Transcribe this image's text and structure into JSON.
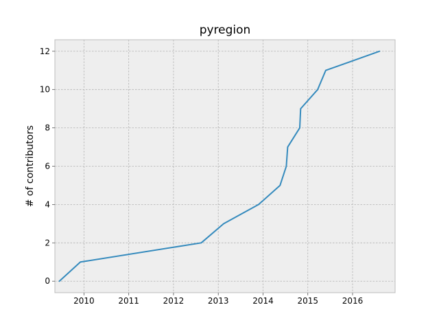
{
  "chart_data": {
    "type": "line",
    "title": "pyregion",
    "xlabel": "",
    "ylabel": "# of contributors",
    "xlim": [
      2009.35,
      2016.95
    ],
    "ylim": [
      -0.6,
      12.6
    ],
    "xticks": [
      2010,
      2011,
      2012,
      2013,
      2014,
      2015,
      2016
    ],
    "xtick_labels": [
      "2010",
      "2011",
      "2012",
      "2013",
      "2014",
      "2015",
      "2016"
    ],
    "yticks": [
      0,
      2,
      4,
      6,
      8,
      10,
      12
    ],
    "ytick_labels": [
      "0",
      "2",
      "4",
      "6",
      "8",
      "10",
      "12"
    ],
    "grid": true,
    "series": [
      {
        "color": "#348abd",
        "x": [
          2009.45,
          2009.92,
          2012.62,
          2013.12,
          2013.9,
          2014.38,
          2014.52,
          2014.55,
          2014.82,
          2014.84,
          2015.22,
          2015.4,
          2016.6
        ],
        "y": [
          0,
          1,
          2,
          3,
          4,
          5,
          6,
          7,
          8,
          9,
          10,
          11,
          12
        ]
      }
    ]
  },
  "colors": {
    "plot_background": "#eeeeee",
    "grid": "#b2b2b2",
    "frame": "#bcbcbc",
    "line": "#348abd"
  }
}
